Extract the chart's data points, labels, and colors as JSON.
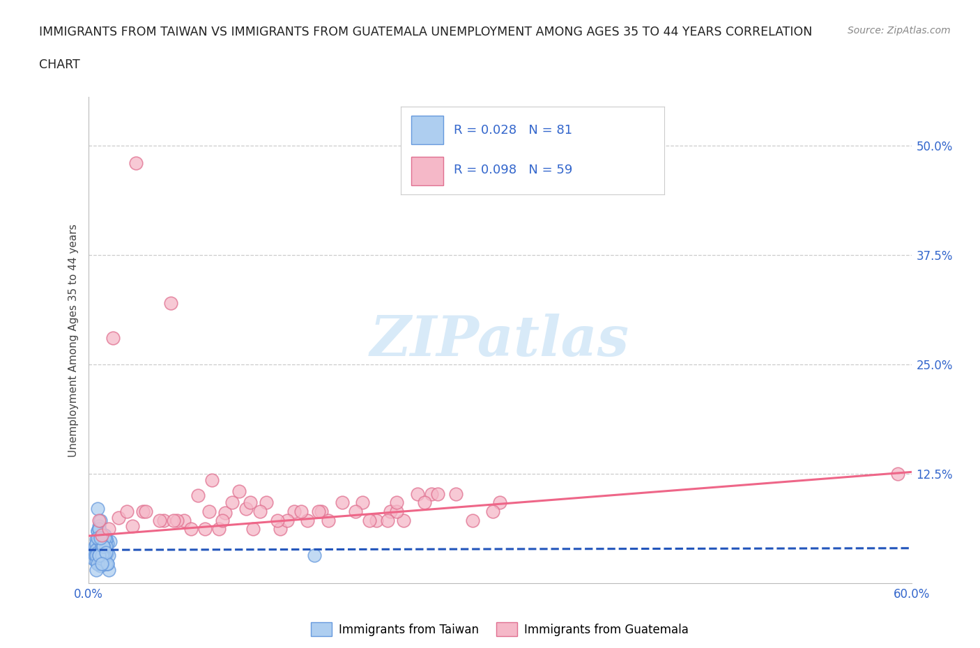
{
  "title_line1": "IMMIGRANTS FROM TAIWAN VS IMMIGRANTS FROM GUATEMALA UNEMPLOYMENT AMONG AGES 35 TO 44 YEARS CORRELATION",
  "title_line2": "CHART",
  "source": "Source: ZipAtlas.com",
  "ylabel": "Unemployment Among Ages 35 to 44 years",
  "xlim": [
    0.0,
    0.6
  ],
  "ylim": [
    0.0,
    0.555
  ],
  "xticks": [
    0.0,
    0.1,
    0.2,
    0.3,
    0.4,
    0.5,
    0.6
  ],
  "xticklabels": [
    "0.0%",
    "",
    "",
    "",
    "",
    "",
    "60.0%"
  ],
  "ytick_positions": [
    0.0,
    0.125,
    0.25,
    0.375,
    0.5
  ],
  "ytick_labels": [
    "",
    "12.5%",
    "25.0%",
    "37.5%",
    "50.0%"
  ],
  "background_color": "#ffffff",
  "grid_color": "#cccccc",
  "taiwan_color": "#aecef0",
  "taiwan_edge_color": "#6699dd",
  "guatemala_color": "#f5b8c8",
  "guatemala_edge_color": "#e07090",
  "taiwan_R": 0.028,
  "taiwan_N": 81,
  "guatemala_R": 0.098,
  "guatemala_N": 59,
  "taiwan_line_color": "#2255bb",
  "guatemala_line_color": "#ee6688",
  "watermark_color": "#d8eaf8",
  "label_color": "#3366cc",
  "taiwan_scatter_x": [
    0.005,
    0.008,
    0.01,
    0.012,
    0.015,
    0.007,
    0.003,
    0.009,
    0.011,
    0.014,
    0.006,
    0.01,
    0.013,
    0.004,
    0.008,
    0.012,
    0.016,
    0.009,
    0.007,
    0.011,
    0.005,
    0.013,
    0.01,
    0.008,
    0.014,
    0.006,
    0.009,
    0.012,
    0.007,
    0.011,
    0.015,
    0.008,
    0.01,
    0.013,
    0.006,
    0.009,
    0.012,
    0.007,
    0.011,
    0.014,
    0.005,
    0.008,
    0.01,
    0.013,
    0.007,
    0.011,
    0.009,
    0.006,
    0.012,
    0.01,
    0.008,
    0.007,
    0.011,
    0.009,
    0.013,
    0.006,
    0.01,
    0.012,
    0.008,
    0.009,
    0.011,
    0.007,
    0.01,
    0.013,
    0.006,
    0.009,
    0.012,
    0.008,
    0.011,
    0.007,
    0.01,
    0.009,
    0.014,
    0.008,
    0.011,
    0.006,
    0.013,
    0.009,
    0.165,
    0.007,
    0.01
  ],
  "taiwan_scatter_y": [
    0.04,
    0.025,
    0.03,
    0.055,
    0.015,
    0.06,
    0.035,
    0.02,
    0.045,
    0.022,
    0.05,
    0.032,
    0.042,
    0.028,
    0.065,
    0.038,
    0.048,
    0.055,
    0.022,
    0.033,
    0.042,
    0.033,
    0.025,
    0.05,
    0.035,
    0.045,
    0.022,
    0.038,
    0.06,
    0.025,
    0.032,
    0.042,
    0.055,
    0.022,
    0.038,
    0.048,
    0.055,
    0.022,
    0.038,
    0.045,
    0.032,
    0.062,
    0.025,
    0.05,
    0.035,
    0.045,
    0.022,
    0.032,
    0.042,
    0.052,
    0.022,
    0.032,
    0.042,
    0.035,
    0.05,
    0.025,
    0.042,
    0.032,
    0.062,
    0.022,
    0.032,
    0.052,
    0.022,
    0.042,
    0.032,
    0.022,
    0.052,
    0.032,
    0.042,
    0.022,
    0.032,
    0.072,
    0.022,
    0.032,
    0.042,
    0.015,
    0.035,
    0.052,
    0.032,
    0.085,
    0.022
  ],
  "guatemala_scatter_x": [
    0.01,
    0.035,
    0.06,
    0.08,
    0.1,
    0.055,
    0.09,
    0.12,
    0.15,
    0.018,
    0.07,
    0.11,
    0.14,
    0.2,
    0.22,
    0.25,
    0.28,
    0.3,
    0.16,
    0.022,
    0.23,
    0.015,
    0.04,
    0.065,
    0.095,
    0.13,
    0.17,
    0.21,
    0.24,
    0.028,
    0.085,
    0.115,
    0.145,
    0.185,
    0.225,
    0.052,
    0.105,
    0.155,
    0.205,
    0.255,
    0.075,
    0.125,
    0.175,
    0.225,
    0.032,
    0.088,
    0.138,
    0.195,
    0.245,
    0.295,
    0.062,
    0.118,
    0.168,
    0.218,
    0.268,
    0.042,
    0.098,
    0.59,
    0.008
  ],
  "guatemala_scatter_y": [
    0.055,
    0.48,
    0.32,
    0.1,
    0.08,
    0.072,
    0.118,
    0.062,
    0.082,
    0.28,
    0.072,
    0.105,
    0.062,
    0.092,
    0.082,
    0.102,
    0.072,
    0.092,
    0.072,
    0.075,
    0.072,
    0.062,
    0.082,
    0.072,
    0.062,
    0.092,
    0.082,
    0.072,
    0.102,
    0.082,
    0.062,
    0.085,
    0.072,
    0.092,
    0.082,
    0.072,
    0.092,
    0.082,
    0.072,
    0.102,
    0.062,
    0.082,
    0.072,
    0.092,
    0.065,
    0.082,
    0.072,
    0.082,
    0.092,
    0.082,
    0.072,
    0.092,
    0.082,
    0.072,
    0.102,
    0.082,
    0.072,
    0.125,
    0.072
  ],
  "gt_trend_x0": 0.0,
  "gt_trend_y0": 0.054,
  "gt_trend_x1": 0.6,
  "gt_trend_y1": 0.127,
  "tw_trend_x0": 0.0,
  "tw_trend_y0": 0.038,
  "tw_trend_x1": 0.6,
  "tw_trend_y1": 0.04
}
